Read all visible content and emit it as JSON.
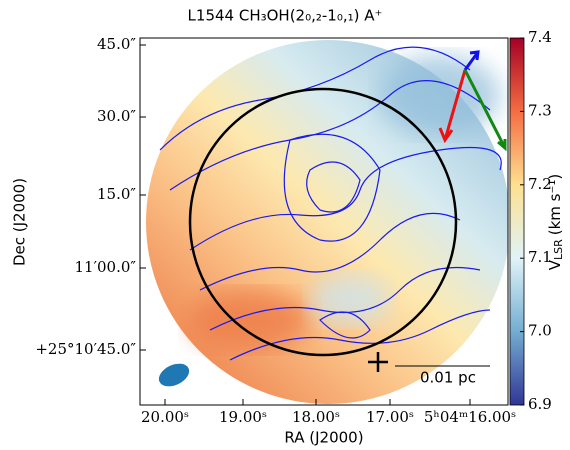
{
  "chart_data": {
    "type": "image",
    "title": "L1544 CH₃OH(2₀,₂-1₀,₁) A⁺",
    "x_label": "RA (J2000)",
    "y_label": "Dec (J2000)",
    "x_tick_labels": [
      "20.00ˢ",
      "19.00ˢ",
      "18.00ˢ",
      "17.00ˢ",
      "5ʰ04ᵐ16.00ˢ"
    ],
    "y_tick_labels": [
      "45.0″",
      "30.0″",
      "15.0″",
      "11′00.0″",
      "+25°10′45.0″"
    ],
    "colorbar_label": {
      "symbol": "V",
      "subscript": "LSR",
      "unit": "(km s⁻¹)"
    },
    "clim": [
      6.9,
      7.4
    ],
    "colorbar_ticks": [
      7.4,
      7.3,
      7.2,
      7.1,
      {
        "value": 7,
        "label": "7.0"
      },
      6.9
    ],
    "scalebar_label": "0.01 pc"
  }
}
